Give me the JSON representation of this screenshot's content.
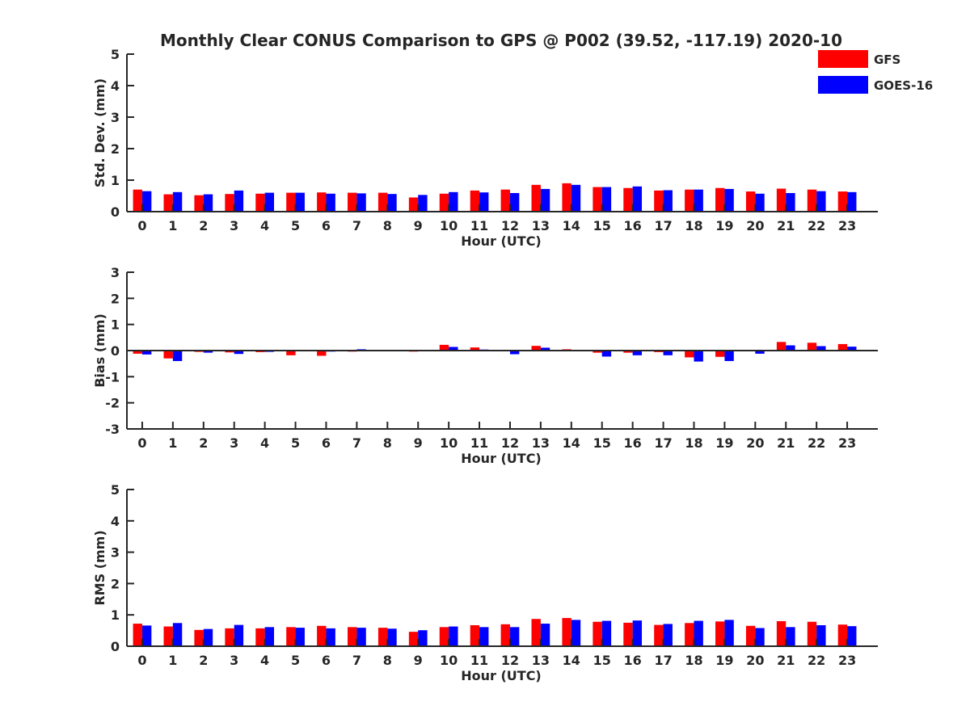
{
  "title": "Monthly Clear CONUS Comparison to GPS @ P002 (39.52, -117.19) 2020-10",
  "legend": {
    "items": [
      {
        "label": "GFS",
        "color": "#ff0000"
      },
      {
        "label": "GOES-16",
        "color": "#0000ff"
      }
    ],
    "placement": "top-right"
  },
  "chart_data": [
    {
      "type": "bar",
      "xlabel": "Hour (UTC)",
      "ylabel": "Std. Dev. (mm)",
      "ylim": [
        0,
        5
      ],
      "yticks": [
        "0",
        "1",
        "2",
        "3",
        "4",
        "5"
      ],
      "categories": [
        "0",
        "1",
        "2",
        "3",
        "4",
        "5",
        "6",
        "7",
        "8",
        "9",
        "10",
        "11",
        "12",
        "13",
        "14",
        "15",
        "16",
        "17",
        "18",
        "19",
        "20",
        "21",
        "22",
        "23"
      ],
      "series": [
        {
          "name": "GFS",
          "color": "#ff0000",
          "values": [
            0.7,
            0.55,
            0.52,
            0.56,
            0.57,
            0.6,
            0.61,
            0.6,
            0.6,
            0.45,
            0.57,
            0.67,
            0.7,
            0.85,
            0.9,
            0.78,
            0.75,
            0.67,
            0.7,
            0.75,
            0.64,
            0.73,
            0.7,
            0.64
          ]
        },
        {
          "name": "GOES-16",
          "color": "#0000ff",
          "values": [
            0.65,
            0.62,
            0.55,
            0.67,
            0.6,
            0.6,
            0.57,
            0.58,
            0.56,
            0.53,
            0.62,
            0.61,
            0.59,
            0.72,
            0.85,
            0.78,
            0.8,
            0.68,
            0.7,
            0.72,
            0.57,
            0.59,
            0.65,
            0.62
          ]
        }
      ]
    },
    {
      "type": "bar",
      "xlabel": "Hour (UTC)",
      "ylabel": "Bias (mm)",
      "ylim": [
        -3,
        3
      ],
      "yticks": [
        "-3",
        "-2",
        "-1",
        "0",
        "1",
        "2",
        "3"
      ],
      "categories": [
        "0",
        "1",
        "2",
        "3",
        "4",
        "5",
        "6",
        "7",
        "8",
        "9",
        "10",
        "11",
        "12",
        "13",
        "14",
        "15",
        "16",
        "17",
        "18",
        "19",
        "20",
        "21",
        "22",
        "23"
      ],
      "series": [
        {
          "name": "GFS",
          "color": "#ff0000",
          "values": [
            -0.12,
            -0.3,
            -0.05,
            -0.07,
            -0.06,
            -0.18,
            -0.2,
            -0.04,
            -0.02,
            -0.04,
            0.22,
            0.12,
            -0.03,
            0.18,
            0.05,
            -0.08,
            -0.08,
            -0.06,
            -0.26,
            -0.24,
            -0.02,
            0.33,
            0.3,
            0.25
          ]
        },
        {
          "name": "GOES-16",
          "color": "#0000ff",
          "values": [
            -0.15,
            -0.4,
            -0.08,
            -0.13,
            -0.05,
            -0.03,
            -0.04,
            0.05,
            0.03,
            -0.03,
            0.14,
            0.04,
            -0.14,
            0.11,
            0.02,
            -0.23,
            -0.18,
            -0.18,
            -0.42,
            -0.4,
            -0.12,
            0.2,
            0.17,
            0.15
          ]
        }
      ]
    },
    {
      "type": "bar",
      "xlabel": "Hour (UTC)",
      "ylabel": "RMS (mm)",
      "ylim": [
        0,
        5
      ],
      "yticks": [
        "0",
        "1",
        "2",
        "3",
        "4",
        "5"
      ],
      "categories": [
        "0",
        "1",
        "2",
        "3",
        "4",
        "5",
        "6",
        "7",
        "8",
        "9",
        "10",
        "11",
        "12",
        "13",
        "14",
        "15",
        "16",
        "17",
        "18",
        "19",
        "20",
        "21",
        "22",
        "23"
      ],
      "series": [
        {
          "name": "GFS",
          "color": "#ff0000",
          "values": [
            0.72,
            0.63,
            0.52,
            0.57,
            0.57,
            0.61,
            0.65,
            0.61,
            0.59,
            0.46,
            0.61,
            0.67,
            0.7,
            0.87,
            0.9,
            0.78,
            0.75,
            0.68,
            0.74,
            0.79,
            0.65,
            0.8,
            0.78,
            0.69
          ]
        },
        {
          "name": "GOES-16",
          "color": "#0000ff",
          "values": [
            0.66,
            0.74,
            0.55,
            0.68,
            0.61,
            0.59,
            0.57,
            0.59,
            0.56,
            0.51,
            0.63,
            0.61,
            0.61,
            0.72,
            0.84,
            0.81,
            0.82,
            0.71,
            0.81,
            0.84,
            0.58,
            0.61,
            0.67,
            0.64
          ]
        }
      ]
    }
  ]
}
